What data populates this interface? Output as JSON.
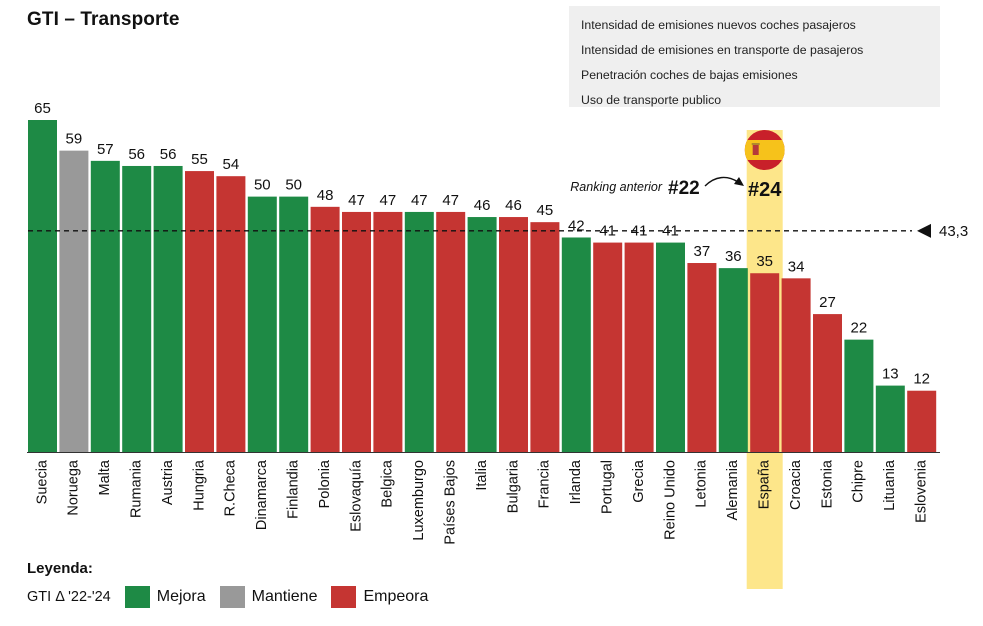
{
  "title": "GTI – Transporte",
  "indicators": [
    "Intensidad de emisiones nuevos coches pasajeros",
    "Intensidad de emisiones en transporte de pasajeros",
    "Penetración coches de bajas emisiones",
    "Uso de transporte publico"
  ],
  "colors": {
    "mejora": "#1e8a45",
    "mantiene": "#999999",
    "empeora": "#c53532",
    "highlight": "#fde68a"
  },
  "chart_data": {
    "type": "bar",
    "categories": [
      "Suecia",
      "Noruega",
      "Malta",
      "Rumania",
      "Austria",
      "Hungria",
      "R.Checa",
      "Dinamarca",
      "Finlandia",
      "Polonia",
      "Eslovaquía",
      "Belgica",
      "Luxemburgo",
      "Países Bajos",
      "Italia",
      "Bulgaria",
      "Francia",
      "Irlanda",
      "Portugal",
      "Grecia",
      "Reino Unido",
      "Letonia",
      "Alemania",
      "España",
      "Croacia",
      "Estonia",
      "Chipre",
      "Lituania",
      "Eslovenia"
    ],
    "values": [
      65,
      59,
      57,
      56,
      56,
      55,
      54,
      50,
      50,
      48,
      47,
      47,
      47,
      47,
      46,
      46,
      45,
      42,
      41,
      41,
      41,
      37,
      36,
      35,
      34,
      27,
      22,
      13,
      12
    ],
    "status": [
      "mejora",
      "mantiene",
      "mejora",
      "mejora",
      "mejora",
      "empeora",
      "empeora",
      "mejora",
      "mejora",
      "empeora",
      "empeora",
      "empeora",
      "mejora",
      "empeora",
      "mejora",
      "empeora",
      "empeora",
      "mejora",
      "empeora",
      "empeora",
      "mejora",
      "empeora",
      "mejora",
      "empeora",
      "empeora",
      "empeora",
      "mejora",
      "mejora",
      "empeora"
    ],
    "ylim": [
      0,
      65
    ],
    "average": {
      "value": 43.3,
      "label": "43,3"
    },
    "highlight": {
      "category": "España",
      "current_rank": "#24",
      "previous_rank_label": "Ranking anterior",
      "previous_rank": "#22"
    }
  },
  "legend": {
    "title": "Leyenda:",
    "gti_label": "GTI Δ '22-'24",
    "items": [
      {
        "key": "mejora",
        "label": "Mejora"
      },
      {
        "key": "mantiene",
        "label": "Mantiene"
      },
      {
        "key": "empeora",
        "label": "Empeora"
      }
    ]
  }
}
